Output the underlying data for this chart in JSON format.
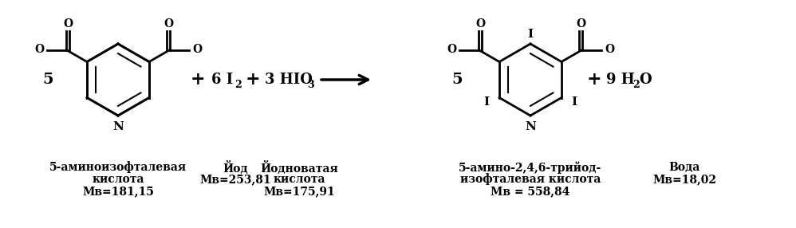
{
  "bg_color": "#ffffff",
  "font_family": "DejaVu Serif",
  "label1_line1": "5-аминоизофталевая",
  "label1_line2": "кислота",
  "label1_line3": "Мв=181,15",
  "label2_line1": "Йод",
  "label2_line2": "Мв=253,81",
  "label3_line1": "Йодноватая",
  "label3_line2": "кислота",
  "label3_line3": "Мв=175,91",
  "label4_line1": "5-амино-2,4,6-трийод-",
  "label4_line2": "изофталевая кислота",
  "label4_line3": "Мв = 558,84",
  "label5_line1": "Вода",
  "label5_line2": "Мв=18,02"
}
